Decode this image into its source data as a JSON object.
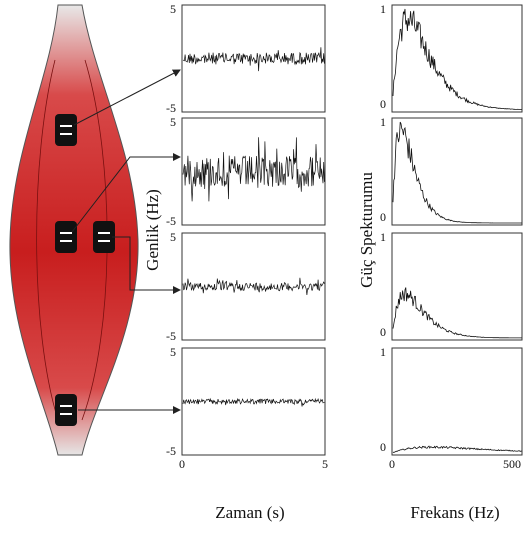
{
  "axes": {
    "y_label_left": "Genlik (Hz)",
    "y_label_right": "Güç Spekturumu",
    "x_label_left": "Zaman (s)",
    "x_label_right": "Frekans (Hz)"
  },
  "time_panels": [
    {
      "top": "5",
      "bottom": "-5"
    },
    {
      "top": "5",
      "bottom": "-5"
    },
    {
      "top": "5",
      "bottom": "-5"
    },
    {
      "top": "5",
      "bottom": "-5"
    }
  ],
  "time_x_ticks": [
    "0",
    "5"
  ],
  "spectrum_panels": [
    {
      "top": "1",
      "bottom": "0"
    },
    {
      "top": "1",
      "bottom": "0"
    },
    {
      "top": "1",
      "bottom": "0"
    },
    {
      "top": "1",
      "bottom": "0"
    }
  ],
  "spectrum_x_ticks": [
    "0",
    "500"
  ]
}
